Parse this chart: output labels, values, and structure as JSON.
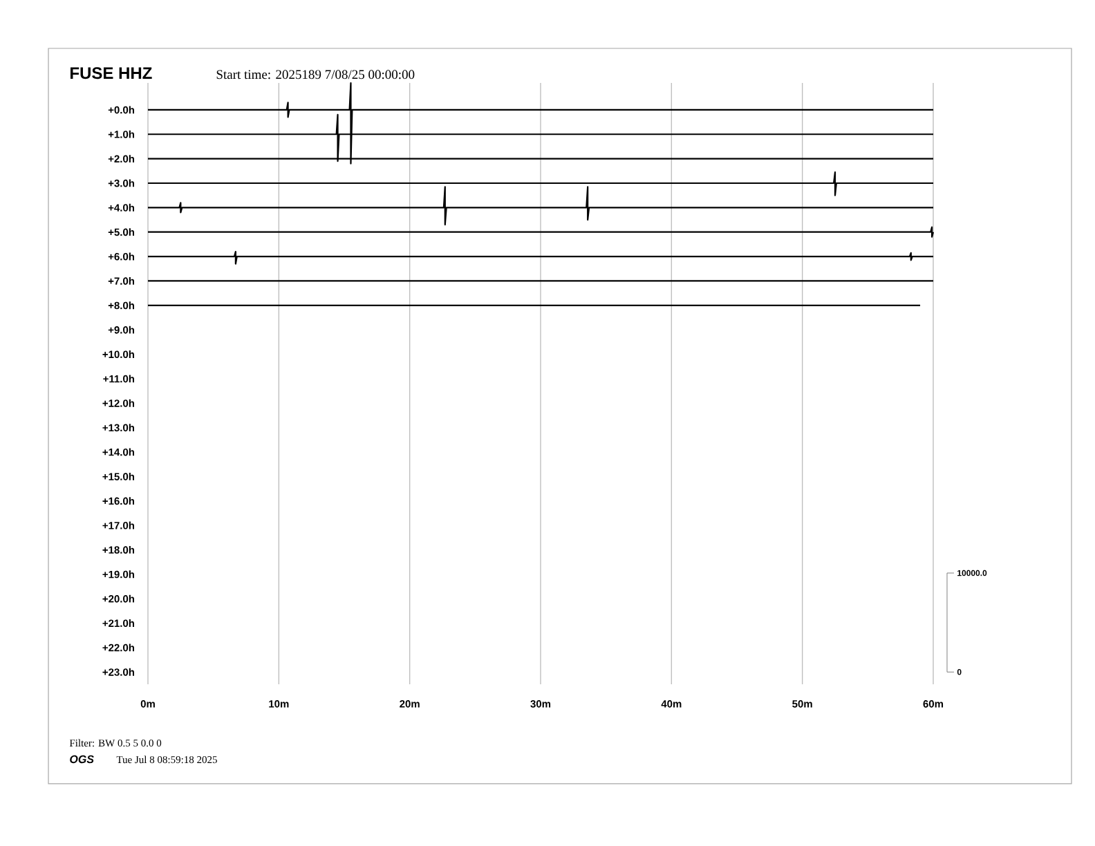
{
  "chart_data": {
    "type": "line",
    "title": "FUSE HHZ",
    "subtitle": "Start time: 2025189  7/08/25 00:00:00",
    "annotations": [
      "10000.0",
      "0",
      "Filter: BW 0.5 5 0.0 0",
      "OGS",
      "Tue Jul  8 08:59:18 2025"
    ],
    "xlim": [
      0,
      60
    ],
    "ylim": [
      23.5,
      -1.1
    ],
    "grid": "x",
    "xticks": [
      {
        "value": 0,
        "label": "0m"
      },
      {
        "value": 10,
        "label": "10m"
      },
      {
        "value": 20,
        "label": "20m"
      },
      {
        "value": 30,
        "label": "30m"
      },
      {
        "value": 40,
        "label": "40m"
      },
      {
        "value": 50,
        "label": "50m"
      },
      {
        "value": 60,
        "label": "60m"
      }
    ],
    "yticks": [
      {
        "value": 0,
        "label": "+0.0h"
      },
      {
        "value": 1,
        "label": "+1.0h"
      },
      {
        "value": 2,
        "label": "+2.0h"
      },
      {
        "value": 3,
        "label": "+3.0h"
      },
      {
        "value": 4,
        "label": "+4.0h"
      },
      {
        "value": 5,
        "label": "+5.0h"
      },
      {
        "value": 6,
        "label": "+6.0h"
      },
      {
        "value": 7,
        "label": "+7.0h"
      },
      {
        "value": 8,
        "label": "+8.0h"
      },
      {
        "value": 9,
        "label": "+9.0h"
      },
      {
        "value": 10,
        "label": "+10.0h"
      },
      {
        "value": 11,
        "label": "+11.0h"
      },
      {
        "value": 12,
        "label": "+12.0h"
      },
      {
        "value": 13,
        "label": "+13.0h"
      },
      {
        "value": 14,
        "label": "+14.0h"
      },
      {
        "value": 15,
        "label": "+15.0h"
      },
      {
        "value": 16,
        "label": "+16.0h"
      },
      {
        "value": 17,
        "label": "+17.0h"
      },
      {
        "value": 18,
        "label": "+18.0h"
      },
      {
        "value": 19,
        "label": "+19.0h"
      },
      {
        "value": 20,
        "label": "+20.0h"
      },
      {
        "value": 21,
        "label": "+21.0h"
      },
      {
        "value": 22,
        "label": "+22.0h"
      },
      {
        "value": 23,
        "label": "+23.0h"
      }
    ],
    "series": [
      {
        "color": "#000000",
        "x": [
          0,
          10.6,
          10.7,
          10.7,
          10.8,
          15.4,
          15.5,
          15.5,
          15.6,
          60
        ],
        "values": [
          0,
          0,
          -0.3,
          0.3,
          0,
          0,
          -1.1,
          2.2,
          0,
          0
        ]
      },
      {
        "color": "#000000",
        "x": [
          0,
          14.4,
          14.5,
          14.5,
          14.6,
          60
        ],
        "values": [
          1,
          1,
          0.2,
          2.1,
          1,
          1
        ]
      },
      {
        "color": "#000000",
        "x": [
          0,
          60
        ],
        "values": [
          2,
          2
        ]
      },
      {
        "color": "#000000",
        "x": [
          0,
          52.4,
          52.5,
          52.5,
          52.6,
          60
        ],
        "values": [
          3,
          3,
          2.55,
          3.5,
          3,
          3
        ]
      },
      {
        "color": "#000000",
        "x": [
          0,
          2.4,
          2.5,
          2.5,
          2.6,
          22.6,
          22.7,
          22.7,
          22.8,
          33.5,
          33.6,
          33.6,
          33.7,
          60
        ],
        "values": [
          4,
          4,
          3.8,
          4.2,
          4,
          4,
          3.15,
          4.7,
          4,
          4,
          3.15,
          4.5,
          4,
          4
        ]
      },
      {
        "color": "#000000",
        "x": [
          0,
          59.8,
          59.9,
          59.9,
          60
        ],
        "values": [
          5,
          5,
          4.8,
          5.2,
          5
        ]
      },
      {
        "color": "#000000",
        "x": [
          0,
          6.6,
          6.7,
          6.7,
          6.8,
          58.2,
          58.3,
          58.3,
          58.4,
          60
        ],
        "values": [
          6,
          6,
          5.8,
          6.3,
          6,
          6,
          5.85,
          6.15,
          6,
          6
        ]
      },
      {
        "color": "#000000",
        "x": [
          0,
          60
        ],
        "values": [
          7,
          7
        ]
      },
      {
        "color": "#000000",
        "x": [
          0,
          59
        ],
        "values": [
          8,
          8
        ]
      }
    ]
  }
}
